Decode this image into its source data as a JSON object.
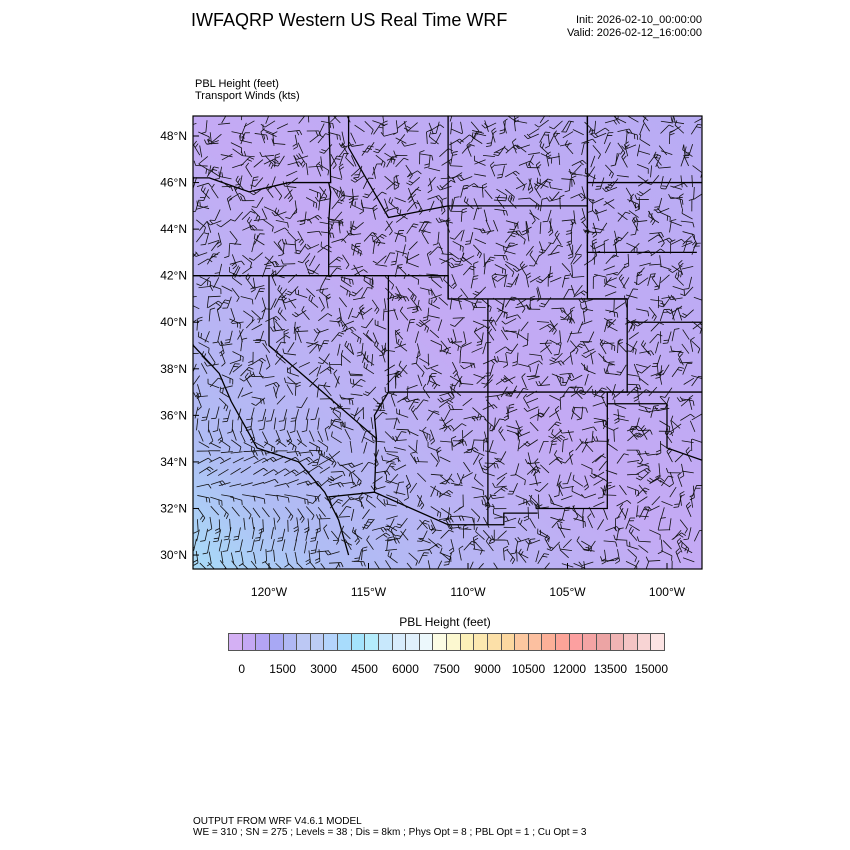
{
  "header": {
    "title": "IWFAQRP Western US Real Time WRF",
    "init": "Init: 2026-02-10_00:00:00",
    "valid": "Valid: 2026-02-12_16:00:00"
  },
  "subtitle": {
    "line1": "PBL Height   (feet)",
    "line2": "Transport Winds   (kts)"
  },
  "map": {
    "lat_labels": [
      "48°N",
      "46°N",
      "44°N",
      "42°N",
      "40°N",
      "38°N",
      "36°N",
      "34°N",
      "32°N",
      "30°N"
    ],
    "lon_labels": [
      "120°W",
      "115°W",
      "110°W",
      "105°W",
      "100°W"
    ],
    "lon_range": [
      -124,
      -98.5
    ],
    "lat_range": [
      29.4,
      48.8
    ],
    "field": "PBL Height",
    "overlay": "wind barbs"
  },
  "colorbar": {
    "title": "PBL Height  (feet)",
    "labels": [
      "0",
      "1500",
      "3000",
      "4500",
      "6000",
      "7500",
      "9000",
      "10500",
      "12000",
      "13500",
      "15000"
    ],
    "colors": [
      "#d4b0f4",
      "#c4a8f4",
      "#b4a4f4",
      "#a8a8f4",
      "#b0b8f4",
      "#bcc8f4",
      "#bcccf4",
      "#b4d4fc",
      "#a8dcfc",
      "#a4e4fc",
      "#b4ecfc",
      "#c8e8fc",
      "#d8ecfc",
      "#e0f0fc",
      "#ecf8fc",
      "#fcfce4",
      "#fcf8d0",
      "#fcf0b8",
      "#fce8b0",
      "#fce0a8",
      "#fcd8a0",
      "#fcc8a0",
      "#fcc0a0",
      "#fcb098",
      "#fca498",
      "#fca0a0",
      "#f4a4a4",
      "#eca4a4",
      "#f0b4b4",
      "#f4c4c4",
      "#f8d4d4",
      "#fce4e4"
    ]
  },
  "footer": {
    "line1": "OUTPUT FROM WRF V4.6.1 MODEL",
    "line2": "WE = 310 ; SN = 275 ; Levels = 38 ; Dis = 8km ; Phys Opt = 8 ; PBL Opt = 1 ; Cu Opt = 3"
  }
}
